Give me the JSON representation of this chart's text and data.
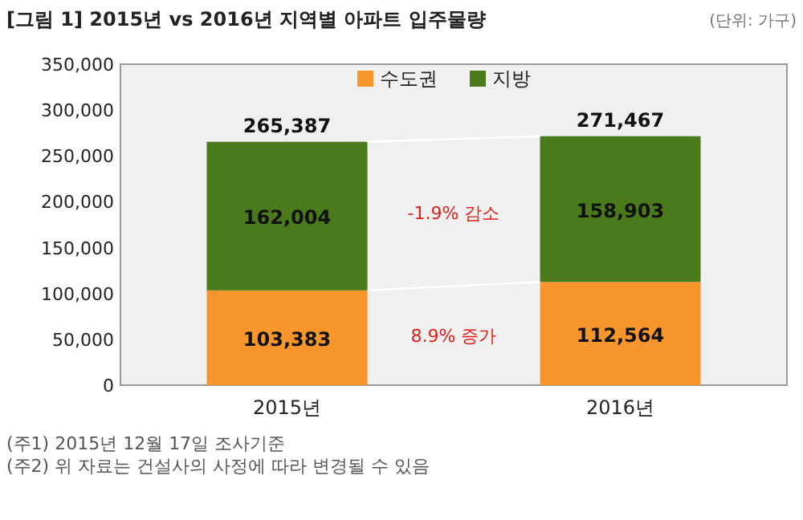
{
  "chart_data": {
    "type": "bar",
    "title": "[그림 1] 2015년 vs 2016년 지역별 아파트 입주물량",
    "subtitle": "(단위: 가구)",
    "categories": [
      "2015년",
      "2016년"
    ],
    "stacked": true,
    "series": [
      {
        "name": "수도권",
        "color": "#f7962d",
        "values": [
          103383,
          112564
        ],
        "value_labels": [
          "103,383",
          "112,564"
        ]
      },
      {
        "name": "지방",
        "color": "#4a7a1c",
        "values": [
          162004,
          158903
        ],
        "value_labels": [
          "162,004",
          "158,903"
        ]
      }
    ],
    "totals": [
      "265,387",
      "271,467"
    ],
    "ylim": [
      0,
      350000
    ],
    "yticks": [
      {
        "value": 0,
        "label": "0"
      },
      {
        "value": 50000,
        "label": "50,000"
      },
      {
        "value": 100000,
        "label": "100,000"
      },
      {
        "value": 150000,
        "label": "150,000"
      },
      {
        "value": 200000,
        "label": "200,000"
      },
      {
        "value": 250000,
        "label": "250,000"
      },
      {
        "value": 300000,
        "label": "300,000"
      },
      {
        "value": 350000,
        "label": "350,000"
      }
    ],
    "grid": false,
    "legend": "top",
    "annotations": [
      "-1.9% 감소",
      "8.9% 증가",
      "(주1) 2015년 12월 17일 조사기준",
      "(주2) 위 자료는 건설사의 사정에 따라 변경될 수 있음"
    ]
  }
}
